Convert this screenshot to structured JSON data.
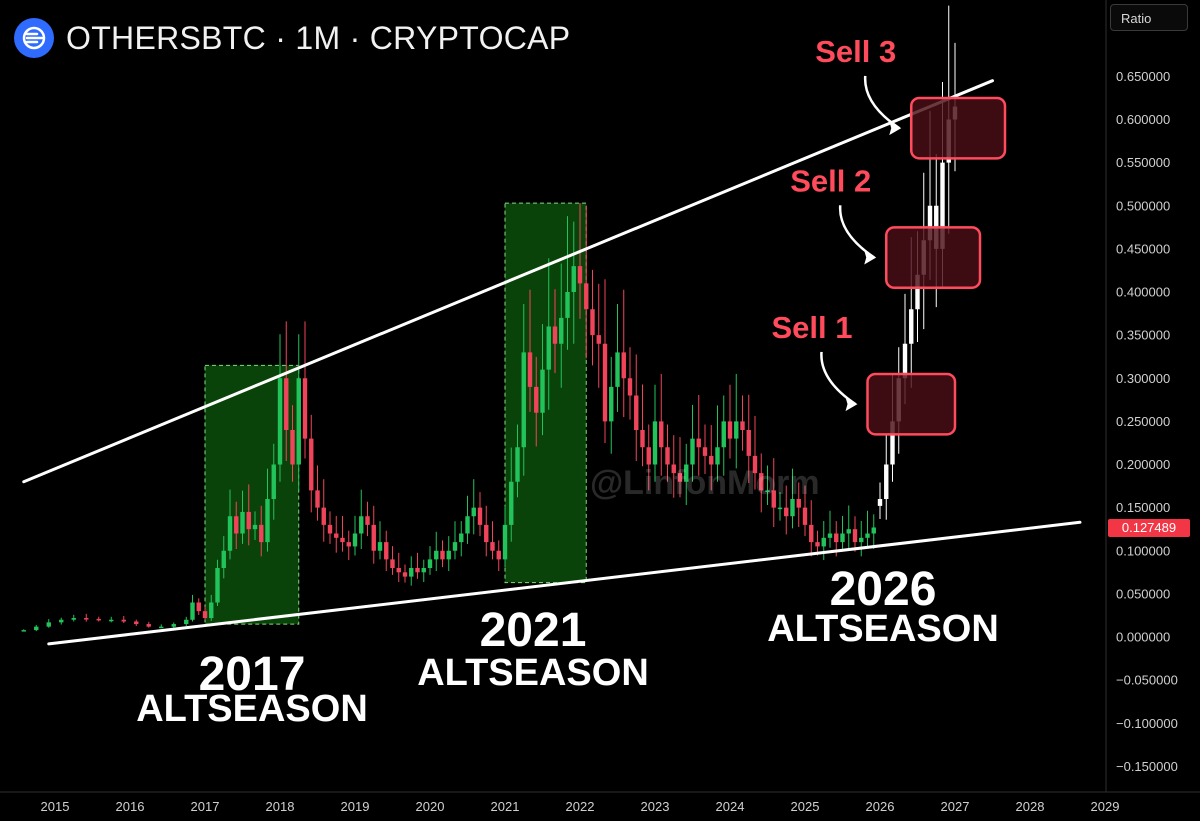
{
  "header": {
    "title": "OTHERSBTC · 1M · CRYPTOCAP",
    "logo_icon": "othersbtc-logo-icon"
  },
  "scale_button": {
    "label": "Ratio"
  },
  "last_price": "0.127489",
  "watermark": "@LinfonMorm",
  "colors": {
    "up": "#22c35b",
    "down": "#f0445a",
    "projection": "#ffffff",
    "altseason_fill": "#0b4a0b",
    "sell_box": "#4a0e16",
    "sell_border": "#ff4b5c",
    "sell_text": "#ff4b5c"
  },
  "chart_data": {
    "type": "candlestick",
    "interval": "1M",
    "ylim": [
      -0.16,
      0.66
    ],
    "xlim": [
      "2014-08",
      "2029-06"
    ],
    "y_ticks": [
      "0.650000",
      "0.600000",
      "0.550000",
      "0.500000",
      "0.450000",
      "0.400000",
      "0.350000",
      "0.300000",
      "0.250000",
      "0.200000",
      "0.150000",
      "0.100000",
      "0.050000",
      "0.000000",
      "−0.050000",
      "−0.100000",
      "−0.150000"
    ],
    "x_ticks": [
      "2015",
      "2016",
      "2017",
      "2018",
      "2019",
      "2020",
      "2021",
      "2022",
      "2023",
      "2024",
      "2025",
      "2026",
      "2027",
      "2028",
      "2029"
    ],
    "grid": false,
    "series": [
      {
        "kind": "historical",
        "points": [
          [
            "2014-08",
            0.008
          ],
          [
            "2014-10",
            0.012
          ],
          [
            "2014-12",
            0.017
          ],
          [
            "2015-02",
            0.02
          ],
          [
            "2015-04",
            0.022
          ],
          [
            "2015-06",
            0.021
          ],
          [
            "2015-08",
            0.02
          ],
          [
            "2015-10",
            0.02
          ],
          [
            "2015-12",
            0.018
          ],
          [
            "2016-02",
            0.015
          ],
          [
            "2016-04",
            0.012
          ],
          [
            "2016-06",
            0.012
          ],
          [
            "2016-08",
            0.015
          ],
          [
            "2016-10",
            0.02
          ],
          [
            "2016-11",
            0.04
          ],
          [
            "2016-12",
            0.03
          ],
          [
            "2017-01",
            0.022
          ],
          [
            "2017-02",
            0.04
          ],
          [
            "2017-03",
            0.08
          ],
          [
            "2017-04",
            0.1
          ],
          [
            "2017-05",
            0.14
          ],
          [
            "2017-06",
            0.12
          ],
          [
            "2017-07",
            0.145
          ],
          [
            "2017-08",
            0.125
          ],
          [
            "2017-09",
            0.13
          ],
          [
            "2017-10",
            0.11
          ],
          [
            "2017-11",
            0.16
          ],
          [
            "2017-12",
            0.2
          ],
          [
            "2018-01",
            0.3
          ],
          [
            "2018-02",
            0.24
          ],
          [
            "2018-03",
            0.2
          ],
          [
            "2018-04",
            0.3
          ],
          [
            "2018-05",
            0.23
          ],
          [
            "2018-06",
            0.17
          ],
          [
            "2018-07",
            0.15
          ],
          [
            "2018-08",
            0.13
          ],
          [
            "2018-09",
            0.12
          ],
          [
            "2018-10",
            0.115
          ],
          [
            "2018-11",
            0.11
          ],
          [
            "2018-12",
            0.105
          ],
          [
            "2019-01",
            0.12
          ],
          [
            "2019-02",
            0.14
          ],
          [
            "2019-03",
            0.13
          ],
          [
            "2019-04",
            0.1
          ],
          [
            "2019-05",
            0.11
          ],
          [
            "2019-06",
            0.09
          ],
          [
            "2019-07",
            0.08
          ],
          [
            "2019-08",
            0.075
          ],
          [
            "2019-09",
            0.07
          ],
          [
            "2019-10",
            0.08
          ],
          [
            "2019-11",
            0.075
          ],
          [
            "2019-12",
            0.08
          ],
          [
            "2020-01",
            0.09
          ],
          [
            "2020-02",
            0.1
          ],
          [
            "2020-03",
            0.09
          ],
          [
            "2020-04",
            0.1
          ],
          [
            "2020-05",
            0.11
          ],
          [
            "2020-06",
            0.12
          ],
          [
            "2020-07",
            0.14
          ],
          [
            "2020-08",
            0.15
          ],
          [
            "2020-09",
            0.13
          ],
          [
            "2020-10",
            0.11
          ],
          [
            "2020-11",
            0.1
          ],
          [
            "2020-12",
            0.09
          ],
          [
            "2021-01",
            0.13
          ],
          [
            "2021-02",
            0.18
          ],
          [
            "2021-03",
            0.22
          ],
          [
            "2021-04",
            0.33
          ],
          [
            "2021-05",
            0.29
          ],
          [
            "2021-06",
            0.26
          ],
          [
            "2021-07",
            0.31
          ],
          [
            "2021-08",
            0.36
          ],
          [
            "2021-09",
            0.34
          ],
          [
            "2021-10",
            0.37
          ],
          [
            "2021-11",
            0.4
          ],
          [
            "2021-12",
            0.43
          ],
          [
            "2022-01",
            0.41
          ],
          [
            "2022-02",
            0.38
          ],
          [
            "2022-03",
            0.35
          ],
          [
            "2022-04",
            0.34
          ],
          [
            "2022-05",
            0.25
          ],
          [
            "2022-06",
            0.29
          ],
          [
            "2022-07",
            0.33
          ],
          [
            "2022-08",
            0.3
          ],
          [
            "2022-09",
            0.28
          ],
          [
            "2022-10",
            0.24
          ],
          [
            "2022-11",
            0.22
          ],
          [
            "2022-12",
            0.2
          ],
          [
            "2023-01",
            0.25
          ],
          [
            "2023-02",
            0.22
          ],
          [
            "2023-03",
            0.2
          ],
          [
            "2023-04",
            0.19
          ],
          [
            "2023-05",
            0.18
          ],
          [
            "2023-06",
            0.2
          ],
          [
            "2023-07",
            0.23
          ],
          [
            "2023-08",
            0.22
          ],
          [
            "2023-09",
            0.21
          ],
          [
            "2023-10",
            0.2
          ],
          [
            "2023-11",
            0.22
          ],
          [
            "2023-12",
            0.25
          ],
          [
            "2024-01",
            0.23
          ],
          [
            "2024-02",
            0.25
          ],
          [
            "2024-03",
            0.24
          ],
          [
            "2024-04",
            0.21
          ],
          [
            "2024-05",
            0.19
          ],
          [
            "2024-06",
            0.17
          ],
          [
            "2024-07",
            0.17
          ],
          [
            "2024-08",
            0.15
          ],
          [
            "2024-09",
            0.15
          ],
          [
            "2024-10",
            0.14
          ],
          [
            "2024-11",
            0.16
          ],
          [
            "2024-12",
            0.15
          ],
          [
            "2025-01",
            0.13
          ],
          [
            "2025-02",
            0.11
          ],
          [
            "2025-03",
            0.105
          ],
          [
            "2025-04",
            0.115
          ],
          [
            "2025-05",
            0.12
          ],
          [
            "2025-06",
            0.11
          ],
          [
            "2025-07",
            0.12
          ],
          [
            "2025-08",
            0.125
          ],
          [
            "2025-09",
            0.11
          ],
          [
            "2025-10",
            0.115
          ],
          [
            "2025-11",
            0.12
          ],
          [
            "2025-12",
            0.127
          ]
        ]
      },
      {
        "kind": "projection",
        "points": [
          [
            "2026-01",
            0.16
          ],
          [
            "2026-02",
            0.2
          ],
          [
            "2026-03",
            0.25
          ],
          [
            "2026-04",
            0.3
          ],
          [
            "2026-05",
            0.34
          ],
          [
            "2026-06",
            0.38
          ],
          [
            "2026-07",
            0.42
          ],
          [
            "2026-08",
            0.46
          ],
          [
            "2026-09",
            0.5
          ],
          [
            "2026-10",
            0.45
          ],
          [
            "2026-11",
            0.55
          ],
          [
            "2026-12",
            0.6
          ],
          [
            "2027-01",
            0.615
          ]
        ]
      }
    ],
    "trendlines": [
      {
        "name": "upper",
        "points": [
          [
            "2014-08",
            0.18
          ],
          [
            "2027-07",
            0.645
          ]
        ]
      },
      {
        "name": "lower",
        "points": [
          [
            "2014-12",
            -0.008
          ],
          [
            "2028-09",
            0.133
          ]
        ]
      }
    ],
    "altseason_zones": [
      {
        "x": [
          "2017-01",
          "2018-04"
        ],
        "y": [
          0.015,
          0.315
        ]
      },
      {
        "x": [
          "2021-01",
          "2022-02"
        ],
        "y": [
          0.063,
          0.503
        ]
      }
    ],
    "sell_zones": [
      {
        "label": "Sell 1",
        "x": [
          "2025-11",
          "2027-01"
        ],
        "y": [
          0.235,
          0.305
        ]
      },
      {
        "label": "Sell 2",
        "x": [
          "2026-02",
          "2027-05"
        ],
        "y": [
          0.405,
          0.475
        ]
      },
      {
        "label": "Sell 3",
        "x": [
          "2026-06",
          "2027-09"
        ],
        "y": [
          0.555,
          0.625
        ]
      }
    ],
    "annotations": [
      {
        "year": "2017",
        "label": "ALTSEASON"
      },
      {
        "year": "2021",
        "label": "ALTSEASON"
      },
      {
        "year": "2026",
        "label": "ALTSEASON"
      }
    ]
  }
}
